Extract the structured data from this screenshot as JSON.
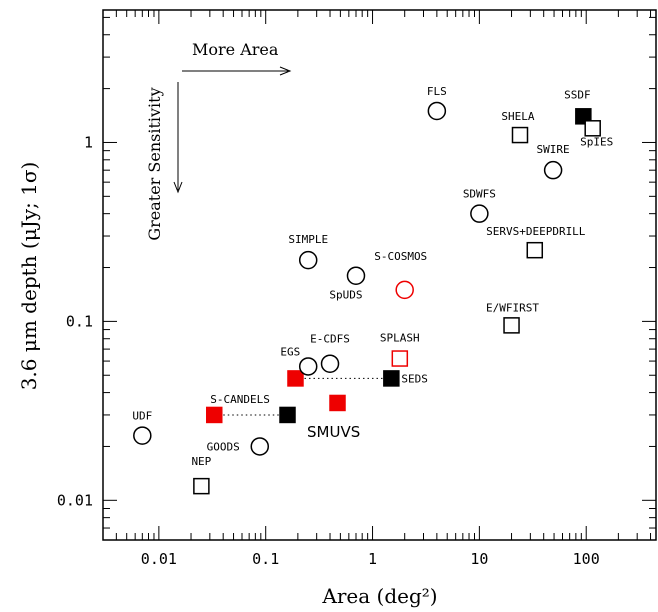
{
  "chart_data": {
    "type": "scatter",
    "xlabel": "Area (deg²)",
    "ylabel": "3.6 μm depth (μJy; 1σ)",
    "xscale": "log",
    "yscale": "log",
    "xlim": [
      0.003,
      450
    ],
    "ylim": [
      0.006,
      5.5
    ],
    "x_ticks": [
      {
        "value": 0.01,
        "label": "0.01"
      },
      {
        "value": 0.1,
        "label": "0.1"
      },
      {
        "value": 1,
        "label": "1"
      },
      {
        "value": 10,
        "label": "10"
      },
      {
        "value": 100,
        "label": "100"
      }
    ],
    "y_ticks": [
      {
        "value": 0.01,
        "label": "0.01"
      },
      {
        "value": 0.1,
        "label": "0.1"
      },
      {
        "value": 1,
        "label": "1"
      }
    ],
    "annotations": {
      "more_area": "More Area",
      "greater_sensitivity": "Greater Sensitivity",
      "smuvs": "SMUVS"
    },
    "points": [
      {
        "name": "UDF",
        "x": 0.007,
        "y": 0.023,
        "marker": "circle",
        "color": "#000000",
        "filled": false
      },
      {
        "name": "GOODS",
        "x": 0.088,
        "y": 0.02,
        "marker": "circle",
        "color": "#000000",
        "filled": false
      },
      {
        "name": "NEP",
        "x": 0.025,
        "y": 0.012,
        "marker": "square",
        "color": "#000000",
        "filled": false
      },
      {
        "name": "S-CANDELS",
        "x": 0.033,
        "y": 0.03,
        "marker": "square",
        "color": "#ee0000",
        "filled": true
      },
      {
        "name": "",
        "x": 0.16,
        "y": 0.03,
        "marker": "square",
        "color": "#000000",
        "filled": true
      },
      {
        "name": "",
        "x": 0.19,
        "y": 0.048,
        "marker": "square",
        "color": "#ee0000",
        "filled": true
      },
      {
        "name": "SEDS",
        "x": 1.5,
        "y": 0.048,
        "marker": "square",
        "color": "#000000",
        "filled": true
      },
      {
        "name": "",
        "x": 0.47,
        "y": 0.035,
        "marker": "square",
        "color": "#ee0000",
        "filled": true
      },
      {
        "name": "EGS",
        "x": 0.25,
        "y": 0.056,
        "marker": "circle",
        "color": "#000000",
        "filled": false
      },
      {
        "name": "E-CDFS",
        "x": 0.4,
        "y": 0.058,
        "marker": "circle",
        "color": "#000000",
        "filled": false
      },
      {
        "name": "SPLASH",
        "x": 1.8,
        "y": 0.062,
        "marker": "square",
        "color": "#ee0000",
        "filled": false
      },
      {
        "name": "SIMPLE",
        "x": 0.25,
        "y": 0.22,
        "marker": "circle",
        "color": "#000000",
        "filled": false
      },
      {
        "name": "SpUDS",
        "x": 0.7,
        "y": 0.18,
        "marker": "circle",
        "color": "#000000",
        "filled": false
      },
      {
        "name": "S-COSMOS",
        "x": 2.0,
        "y": 0.15,
        "marker": "circle",
        "color": "#ee0000",
        "filled": false
      },
      {
        "name": "FLS",
        "x": 4.0,
        "y": 1.5,
        "marker": "circle",
        "color": "#000000",
        "filled": false
      },
      {
        "name": "SDWFS",
        "x": 10,
        "y": 0.4,
        "marker": "circle",
        "color": "#000000",
        "filled": false
      },
      {
        "name": "SHELA",
        "x": 24,
        "y": 1.1,
        "marker": "square",
        "color": "#000000",
        "filled": false
      },
      {
        "name": "SWIRE",
        "x": 49,
        "y": 0.7,
        "marker": "circle",
        "color": "#000000",
        "filled": false
      },
      {
        "name": "SSDF",
        "x": 94,
        "y": 1.4,
        "marker": "square",
        "color": "#000000",
        "filled": true
      },
      {
        "name": "SpIES",
        "x": 115,
        "y": 1.2,
        "marker": "square",
        "color": "#000000",
        "filled": false
      },
      {
        "name": "SERVS+DEEPDRILL",
        "x": 33,
        "y": 0.25,
        "marker": "square",
        "color": "#000000",
        "filled": false
      },
      {
        "name": "E/WFIRST",
        "x": 20,
        "y": 0.095,
        "marker": "square",
        "color": "#000000",
        "filled": false
      }
    ],
    "connectors": [
      {
        "from": [
          0.033,
          0.03
        ],
        "to": [
          0.16,
          0.03
        ],
        "style": "dotted"
      },
      {
        "from": [
          0.19,
          0.048
        ],
        "to": [
          1.5,
          0.048
        ],
        "style": "dotted"
      }
    ]
  }
}
